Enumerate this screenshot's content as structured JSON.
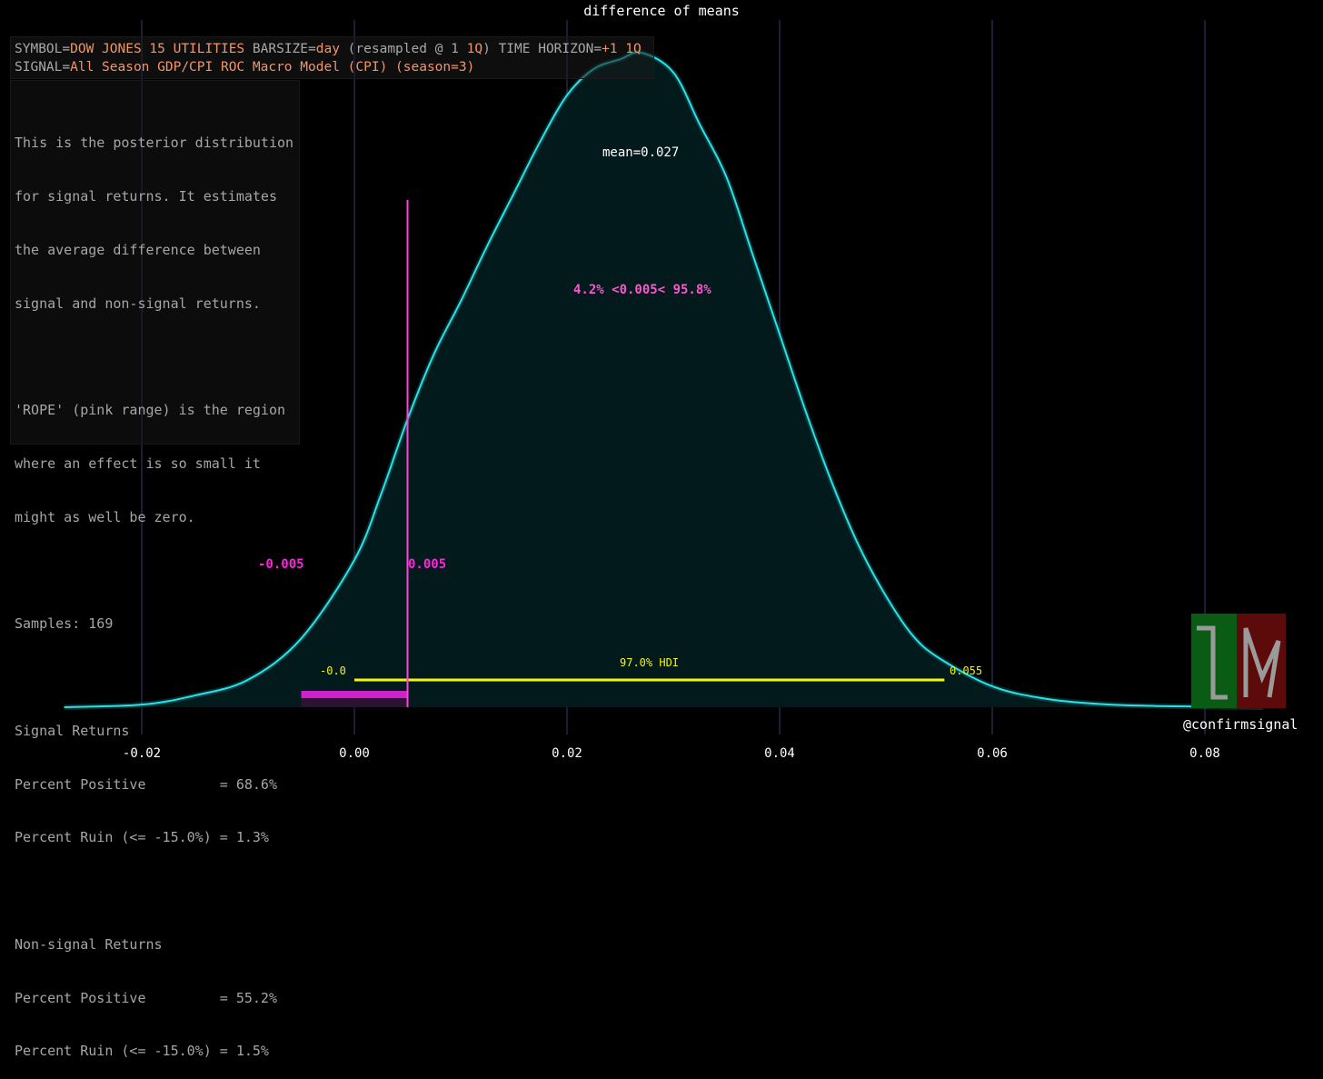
{
  "chart_data": {
    "type": "area",
    "title": "difference of means",
    "xlabel": "",
    "ylabel": "",
    "xlim": [
      -0.0285,
      0.0925
    ],
    "ylim": [
      0,
      1.0
    ],
    "x_ticks": [
      -0.02,
      0.0,
      0.02,
      0.04,
      0.06,
      0.08
    ],
    "x_tick_labels": [
      "-0.02",
      "0.00",
      "0.02",
      "0.04",
      "0.06",
      "0.08"
    ],
    "grid": "vertical",
    "series": [
      {
        "name": "",
        "x": [
          -0.0273,
          -0.02,
          -0.015,
          -0.01,
          -0.005,
          0.0,
          0.0025,
          0.005,
          0.0075,
          0.01,
          0.0125,
          0.015,
          0.0175,
          0.02,
          0.0225,
          0.025,
          0.027,
          0.03,
          0.0325,
          0.035,
          0.0375,
          0.04,
          0.0425,
          0.045,
          0.0475,
          0.05,
          0.0525,
          0.055,
          0.06,
          0.065,
          0.07,
          0.075,
          0.08,
          0.0855
        ],
        "y": [
          0.0,
          0.004,
          0.018,
          0.042,
          0.105,
          0.225,
          0.325,
          0.44,
          0.54,
          0.62,
          0.705,
          0.785,
          0.865,
          0.935,
          0.975,
          0.99,
          1.0,
          0.97,
          0.89,
          0.81,
          0.69,
          0.57,
          0.45,
          0.34,
          0.245,
          0.17,
          0.11,
          0.075,
          0.032,
          0.013,
          0.005,
          0.002,
          0.001,
          0.0
        ]
      }
    ],
    "mean": 0.027,
    "mean_label": "mean=0.027",
    "rope": {
      "low": -0.005,
      "high": 0.005,
      "low_label": "-0.005",
      "high_label": "0.005",
      "pct_label": "4.2% <0.005< 95.8%"
    },
    "hdi": {
      "low": 0.0,
      "high": 0.0555,
      "label": "97.0% HDI",
      "low_label": "-0.0",
      "high_label": "0.055"
    },
    "colors": {
      "curve": "#27e3e8",
      "fill": "#021a1c",
      "grid": "#3a3a6a",
      "rope": "#cc22cc",
      "rope_line": "#ff44dd",
      "hdi": "#f5f500",
      "hdi_fill": "#1c2a14",
      "background": "#000000"
    }
  },
  "meta": {
    "line1_a": "SYMBOL=",
    "line1_b": "DOW JONES 15 UTILITIES",
    "line1_c": " BARSIZE=",
    "line1_d": "day",
    "line1_e": " (resampled @ 1 ",
    "line1_f": "1Q",
    "line1_g": ") TIME HORIZON=",
    "line1_h": "+1 1Q",
    "line2_a": "SIGNAL=",
    "line2_b": "All Season GDP/CPI ROC Macro Model (CPI) (season=3)"
  },
  "description": {
    "lines": [
      "This is the posterior distribution",
      "for signal returns. It estimates",
      "the average difference between",
      "signal and non-signal returns.",
      "",
      "'ROPE' (pink range) is the region",
      "where an effect is so small it",
      "might as well be zero.",
      "",
      "Samples: 169",
      "",
      "Signal Returns",
      "Percent Positive         = 68.6%",
      "Percent Ruin (<= -15.0%) = 1.3%",
      "",
      "Non-signal Returns",
      "Percent Positive         = 55.2%",
      "Percent Ruin (<= -15.0%) = 1.5%"
    ]
  },
  "watermark": "@confirmsignal",
  "logo": {
    "left_glyph": "L",
    "right_glyph": "N",
    "left_color": "#0a5c14",
    "right_color": "#5c0a0a"
  }
}
